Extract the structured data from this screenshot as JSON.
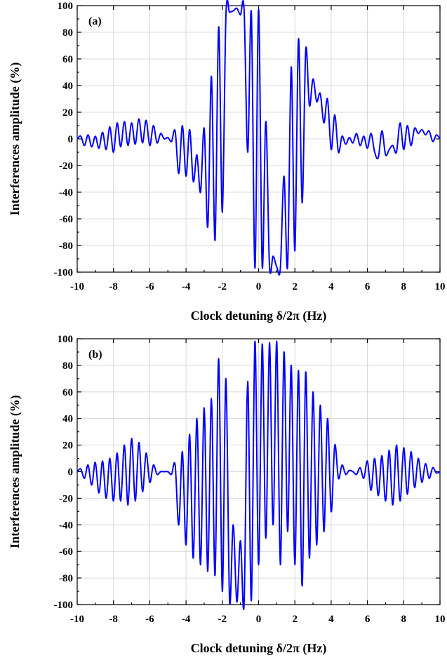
{
  "colors": {
    "curve": "#0000ff",
    "axis": "#000000",
    "grid": "#cfcfcf"
  },
  "chart_data": [
    {
      "type": "line",
      "panel_label": "(a)",
      "xlabel": "Clock detuning δ/2π (Hz)",
      "ylabel": "Interferences amplitude (%)",
      "xlim": [
        -10,
        10
      ],
      "ylim": [
        -100,
        100
      ],
      "xticks": [
        -10,
        -8,
        -6,
        -4,
        -2,
        0,
        2,
        4,
        6,
        8,
        10
      ],
      "yticks": [
        -100,
        -80,
        -60,
        -40,
        -20,
        0,
        20,
        40,
        60,
        80,
        100
      ],
      "grid": true,
      "series": [
        {
          "x": [
            -10,
            -9.8,
            -9.6,
            -9.4,
            -9.2,
            -9.0,
            -8.8,
            -8.6,
            -8.4,
            -8.2,
            -8.0,
            -7.8,
            -7.6,
            -7.4,
            -7.2,
            -7.0,
            -6.8,
            -6.6,
            -6.4,
            -6.2,
            -6.0,
            -5.8,
            -5.6,
            -5.4,
            -5.2,
            -5.0,
            -4.8,
            -4.6,
            -4.4,
            -4.2,
            -4.0,
            -3.8,
            -3.6,
            -3.4,
            -3.2,
            -3.0,
            -2.8,
            -2.6,
            -2.4,
            -2.2,
            -2.0,
            -1.8,
            -1.6,
            -1.4,
            -1.2,
            -1.0,
            -0.8,
            -0.6,
            -0.4,
            -0.2,
            0.0,
            0.2,
            0.4,
            0.6,
            0.8,
            1.0,
            1.2,
            1.4,
            1.6,
            1.8,
            2.0,
            2.2,
            2.4,
            2.6,
            2.8,
            3.0,
            3.2,
            3.4,
            3.6,
            3.8,
            4.0,
            4.2,
            4.4,
            4.6,
            4.8,
            5.0,
            5.2,
            5.4,
            5.6,
            5.8,
            6.0,
            6.2,
            6.4,
            6.6,
            6.8,
            7.0,
            7.2,
            7.4,
            7.6,
            7.8,
            8.0,
            8.2,
            8.4,
            8.6,
            8.8,
            9.0,
            9.2,
            9.4,
            9.6,
            9.8,
            10
          ],
          "y": [
            0,
            2,
            -5,
            3,
            -6,
            2,
            -7,
            5,
            -8,
            9,
            -10,
            12,
            -6,
            13,
            -5,
            12,
            -4,
            15,
            -3,
            14,
            -5,
            10,
            -3,
            4,
            0,
            1,
            -2,
            6,
            -26,
            10,
            -28,
            7,
            -32,
            -12,
            -40,
            8,
            -66,
            47,
            -76,
            84,
            -55,
            93,
            95,
            96,
            98,
            93,
            97,
            -10,
            95,
            -97,
            97,
            -96,
            13,
            -95,
            -88,
            -96,
            -97,
            -28,
            -96,
            54,
            -84,
            75,
            -48,
            67,
            25,
            45,
            28,
            34,
            12,
            30,
            -8,
            18,
            -10,
            2,
            -4,
            1,
            -3,
            4,
            -5,
            2,
            -7,
            4,
            -10,
            -14,
            6,
            -12,
            -8,
            -5,
            -10,
            12,
            -8,
            10,
            -5,
            8,
            4,
            7,
            3,
            6,
            -2,
            3,
            0
          ]
        }
      ]
    },
    {
      "type": "line",
      "panel_label": "(b)",
      "xlabel": "Clock detuning δ/2π (Hz)",
      "ylabel": "Interferences amplitude (%)",
      "xlim": [
        -10,
        10
      ],
      "ylim": [
        -100,
        100
      ],
      "xticks": [
        -10,
        -8,
        -6,
        -4,
        -2,
        0,
        2,
        4,
        6,
        8,
        10
      ],
      "yticks": [
        -100,
        -80,
        -60,
        -40,
        -20,
        0,
        20,
        40,
        60,
        80,
        100
      ],
      "grid": true,
      "series": [
        {
          "x": [
            -10,
            -9.8,
            -9.6,
            -9.4,
            -9.2,
            -9.0,
            -8.8,
            -8.6,
            -8.4,
            -8.2,
            -8.0,
            -7.8,
            -7.6,
            -7.4,
            -7.2,
            -7.0,
            -6.8,
            -6.6,
            -6.4,
            -6.2,
            -6.0,
            -5.8,
            -5.6,
            -5.4,
            -5.2,
            -5.0,
            -4.8,
            -4.6,
            -4.4,
            -4.2,
            -4.0,
            -3.8,
            -3.6,
            -3.4,
            -3.2,
            -3.0,
            -2.8,
            -2.6,
            -2.4,
            -2.2,
            -2.0,
            -1.8,
            -1.6,
            -1.4,
            -1.2,
            -1.0,
            -0.8,
            -0.6,
            -0.4,
            -0.2,
            0.0,
            0.2,
            0.4,
            0.6,
            0.8,
            1.0,
            1.2,
            1.4,
            1.6,
            1.8,
            2.0,
            2.2,
            2.4,
            2.6,
            2.8,
            3.0,
            3.2,
            3.4,
            3.6,
            3.8,
            4.0,
            4.2,
            4.4,
            4.6,
            4.8,
            5.0,
            5.2,
            5.4,
            5.6,
            5.8,
            6.0,
            6.2,
            6.4,
            6.6,
            6.8,
            7.0,
            7.2,
            7.4,
            7.6,
            7.8,
            8.0,
            8.2,
            8.4,
            8.6,
            8.8,
            9.0,
            9.2,
            9.4,
            9.6,
            9.8,
            10
          ],
          "y": [
            0,
            2,
            -5,
            5,
            -10,
            7,
            -16,
            8,
            -20,
            10,
            -22,
            14,
            -22,
            20,
            -25,
            25,
            -22,
            22,
            -15,
            14,
            -8,
            5,
            -2,
            0,
            0,
            0,
            -2,
            5,
            -40,
            15,
            -55,
            28,
            -65,
            40,
            -70,
            48,
            -75,
            55,
            -78,
            85,
            -90,
            70,
            -97,
            -40,
            -98,
            -52,
            -100,
            68,
            -97,
            98,
            -70,
            96,
            -50,
            97,
            -40,
            98,
            -70,
            90,
            -45,
            80,
            -70,
            76,
            -86,
            75,
            -65,
            60,
            -55,
            50,
            -45,
            40,
            -30,
            20,
            -5,
            5,
            -2,
            1,
            0,
            -2,
            3,
            -5,
            8,
            -14,
            10,
            -18,
            12,
            -22,
            16,
            -25,
            20,
            -22,
            18,
            -17,
            15,
            -12,
            10,
            -8,
            6,
            -5,
            3,
            -1,
            0
          ]
        }
      ]
    }
  ]
}
